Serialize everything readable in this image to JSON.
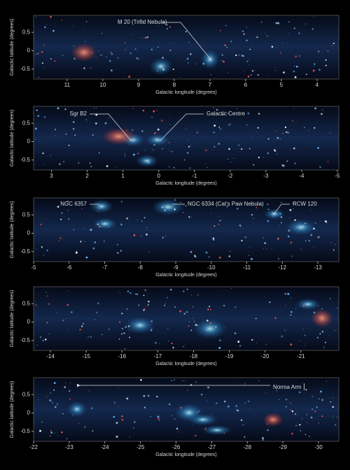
{
  "chart_data": [
    {
      "type": "image",
      "xlabel": "Galactic longitude (degrees)",
      "ylabel": "Galactic latitude (degrees)",
      "xlim": [
        11.94,
        3.39
      ],
      "ylim": [
        -0.77,
        0.96
      ],
      "xticks": [
        11,
        10,
        9,
        8,
        7,
        6,
        5,
        4
      ],
      "yticks": [
        0.5,
        0,
        -0.5
      ],
      "annotations": [
        "M 20 (Trifid Nebula)"
      ]
    },
    {
      "type": "image",
      "xlabel": "Galactic longitude (degrees)",
      "ylabel": "Galactic latitude (degrees)",
      "xlim": [
        3.5,
        -5.04
      ],
      "ylim": [
        -0.77,
        0.96
      ],
      "xticks": [
        3,
        2,
        1,
        0,
        -1,
        -2,
        -3,
        -4,
        -5
      ],
      "yticks": [
        0.5,
        0,
        -0.5
      ],
      "annotations": [
        "Sgr B2",
        "Galactic Centre"
      ]
    },
    {
      "type": "image",
      "xlabel": "Galactic longitude (degrees)",
      "ylabel": "Galactic latitude (degrees)",
      "xlim": [
        -5,
        -13.59
      ],
      "ylim": [
        -0.77,
        0.96
      ],
      "xticks": [
        -5,
        -6,
        -7,
        -8,
        -9,
        -10,
        -11,
        -12,
        -13
      ],
      "yticks": [
        0.5,
        0,
        -0.5
      ],
      "annotations": [
        "NGC 6357",
        "NGC 6334 (Cat's Paw Nebula)",
        "RCW 120"
      ]
    },
    {
      "type": "image",
      "xlabel": "Galactic longitude (degrees)",
      "ylabel": "Galactic latitude (degrees)",
      "xlim": [
        -13.53,
        -22.06
      ],
      "ylim": [
        -0.77,
        0.96
      ],
      "xticks": [
        -14,
        -15,
        -16,
        -17,
        -18,
        -19,
        -20,
        -21
      ],
      "yticks": [
        0.5,
        0,
        -0.5
      ],
      "annotations": []
    },
    {
      "type": "image",
      "xlabel": "Galactic longitude (degrees)",
      "ylabel": "Galactic latitude (degrees)",
      "xlim": [
        -22,
        -30.57
      ],
      "ylim": [
        -0.77,
        0.96
      ],
      "xticks": [
        -22,
        -23,
        -24,
        -25,
        -26,
        -27,
        -28,
        -29,
        -30
      ],
      "yticks": [
        0.5,
        0,
        -0.5
      ],
      "annotations": [
        "Norma Arm"
      ]
    }
  ]
}
